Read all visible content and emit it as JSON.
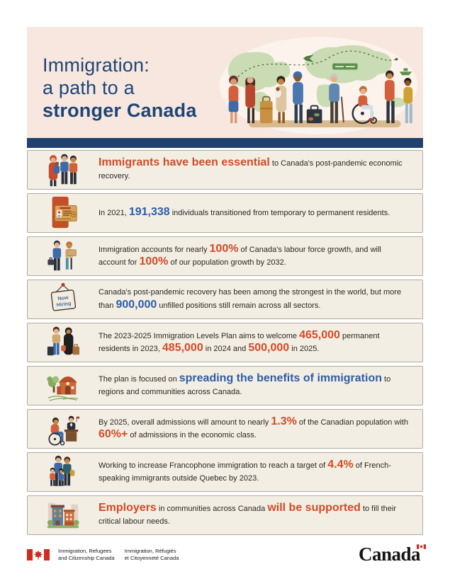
{
  "header": {
    "title_lines": [
      "Immigration:",
      "a path to a",
      "stronger Canada"
    ],
    "illustration": "diverse-immigrants-group-with-world-map-luggage-plane-route"
  },
  "colors": {
    "header_bg": "#f7e7df",
    "navy_title": "#1d4577",
    "blue_bar": "#20406f",
    "row_bg": "#f3eee3",
    "accent_orange": "#d14b28",
    "accent_blue": "#2f5da6",
    "map_green": "#c9dcb4",
    "flag_red": "#d12a1f"
  },
  "now_hiring_sign": [
    "Now",
    "Hiring"
  ],
  "rows": [
    {
      "icon": "family-icon",
      "segments": [
        {
          "t": "Immigrants have been essential",
          "s": "orange"
        },
        {
          "t": " to Canada's post-pandemic economic recovery.",
          "s": "normal"
        }
      ]
    },
    {
      "icon": "pr-card-icon",
      "segments": [
        {
          "t": "In 2021, ",
          "s": "normal"
        },
        {
          "t": "191,338",
          "s": "blue"
        },
        {
          "t": " individuals transitioned from temporary to permanent residents.",
          "s": "normal"
        }
      ]
    },
    {
      "icon": "workers-icon",
      "segments": [
        {
          "t": "Immigration accounts for nearly ",
          "s": "normal"
        },
        {
          "t": "100%",
          "s": "orange"
        },
        {
          "t": " of Canada's labour force growth, and will account for ",
          "s": "normal"
        },
        {
          "t": "100%",
          "s": "orange"
        },
        {
          "t": " of our population growth by 2032.",
          "s": "normal"
        }
      ]
    },
    {
      "icon": "now-hiring-sign-icon",
      "segments": [
        {
          "t": "Canada's post-pandemic recovery has been among the strongest in the world, but more than ",
          "s": "normal"
        },
        {
          "t": "900,000",
          "s": "blue"
        },
        {
          "t": " unfilled positions still remain across all sectors.",
          "s": "normal"
        }
      ]
    },
    {
      "icon": "travellers-luggage-icon",
      "segments": [
        {
          "t": "The 2023-2025 Immigration Levels Plan aims to welcome ",
          "s": "normal"
        },
        {
          "t": "465,000",
          "s": "orange"
        },
        {
          "t": " permanent residents in 2023, ",
          "s": "normal"
        },
        {
          "t": "485,000",
          "s": "orange"
        },
        {
          "t": " in 2024 and ",
          "s": "normal"
        },
        {
          "t": "500,000",
          "s": "orange"
        },
        {
          "t": " in 2025.",
          "s": "normal"
        }
      ]
    },
    {
      "icon": "farm-icon",
      "segments": [
        {
          "t": "The plan is focused on ",
          "s": "normal"
        },
        {
          "t": "spreading the benefits of immigration",
          "s": "blue"
        },
        {
          "t": " to regions and communities across Canada.",
          "s": "normal"
        }
      ]
    },
    {
      "icon": "admissions-desk-icon",
      "segments": [
        {
          "t": "By 2025, overall admissions will amount to nearly ",
          "s": "normal"
        },
        {
          "t": "1.3%",
          "s": "orange"
        },
        {
          "t": " of the Canadian population with ",
          "s": "normal"
        },
        {
          "t": "60%+",
          "s": "orange"
        },
        {
          "t": " of admissions in the economic class.",
          "s": "normal"
        }
      ]
    },
    {
      "icon": "francophone-family-icon",
      "segments": [
        {
          "t": "Working to increase Francophone immigration to reach a target of ",
          "s": "normal"
        },
        {
          "t": "4.4%",
          "s": "orange"
        },
        {
          "t": " of French-speaking immigrants outside Quebec by 2023.",
          "s": "normal"
        }
      ]
    },
    {
      "icon": "community-buildings-icon",
      "segments": [
        {
          "t": "Employers",
          "s": "orange"
        },
        {
          "t": " in communities across Canada ",
          "s": "normal"
        },
        {
          "t": "will be supported",
          "s": "orange"
        },
        {
          "t": " to fill their critical labour needs.",
          "s": "normal"
        }
      ]
    }
  ],
  "footer": {
    "dept_en": [
      "Immigration, Refugees",
      "and Citizenship Canada"
    ],
    "dept_fr": [
      "Immigration, Réfugiés",
      "et Citoyenneté Canada"
    ],
    "wordmark": "Canada"
  }
}
